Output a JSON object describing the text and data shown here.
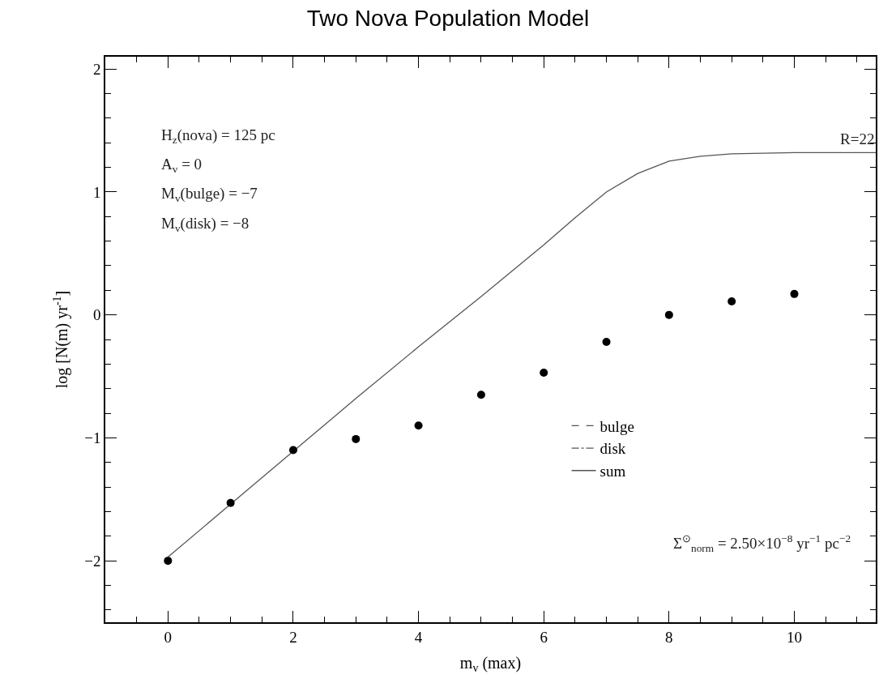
{
  "chart_data": {
    "type": "line",
    "title": "Two Nova Population Model",
    "xlabel": "m$_{v}$ (max)",
    "ylabel": "log [N(m) yr$^{-1}$]",
    "xlim": [
      -1,
      11.3
    ],
    "ylim": [
      -2.5,
      2.1
    ],
    "xticks": [
      0,
      2,
      4,
      6,
      8,
      10
    ],
    "yticks": [
      -2,
      -1,
      0,
      1,
      2
    ],
    "legend": "bottom right",
    "series": [
      {
        "name": "bulge",
        "line_style": "dashed",
        "color": "#555555"
      },
      {
        "name": "disk",
        "line_style": "dashdot",
        "color": "#555555"
      },
      {
        "name": "sum",
        "line_style": "solid",
        "color": "#555555",
        "x": [
          0,
          1,
          2,
          3,
          4,
          5,
          6,
          6.5,
          7,
          7.5,
          8,
          8.5,
          9,
          10,
          11.3
        ],
        "values": [
          -1.97,
          -1.54,
          -1.11,
          -0.68,
          -0.26,
          0.15,
          0.57,
          0.79,
          1.0,
          1.15,
          1.25,
          1.29,
          1.31,
          1.32,
          1.32
        ]
      },
      {
        "type": "scatter",
        "marker": "circle",
        "color": "#000000",
        "x": [
          0,
          1,
          2,
          3,
          4,
          5,
          6,
          7,
          8,
          9,
          10
        ],
        "values": [
          -2.0,
          -1.53,
          -1.1,
          -1.01,
          -0.9,
          -0.65,
          -0.47,
          -0.22,
          0.0,
          0.11,
          0.17
        ]
      }
    ],
    "annotations": [
      "H$_{z}$(nova) = 125 pc",
      "A$_{v}$ = 0",
      "M$_{v}$(bulge) = −7",
      "M$_{v}$(disk) = −8",
      {
        "text": "R=22",
        "x": 11.3,
        "y": 1.32
      },
      "Σ$^{⊙}$$_{norm}$ = 2.50×10$^{−8}$ yr$^{−1}$ pc$^{−2}$"
    ]
  }
}
